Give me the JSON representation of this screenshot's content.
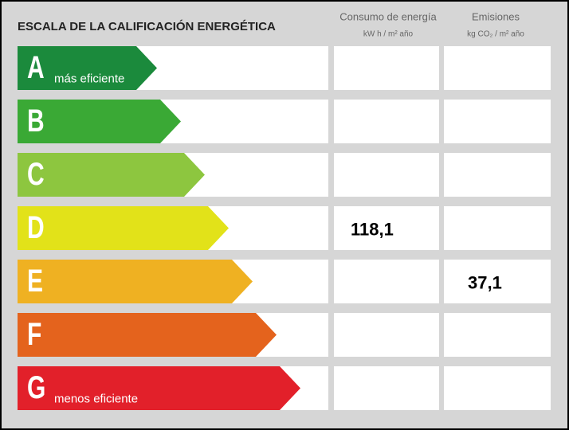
{
  "header": {
    "title": "ESCALA DE LA CALIFICACIÓN ENERGÉTICA"
  },
  "columns": [
    {
      "title": "Consumo de energía",
      "unit": "kW h / m² año"
    },
    {
      "title": "Emisiones",
      "unit": "kg CO₂ / m² año"
    }
  ],
  "rows": [
    {
      "letter": "A",
      "label": "más eficiente",
      "color": "#1b8a3c"
    },
    {
      "letter": "B",
      "color": "#3aa935"
    },
    {
      "letter": "C",
      "color": "#8dc63f"
    },
    {
      "letter": "D",
      "color": "#e2e219",
      "energy": "118,1"
    },
    {
      "letter": "E",
      "color": "#efb122",
      "emissions": "37,1"
    },
    {
      "letter": "F",
      "color": "#e4631d"
    },
    {
      "letter": "G",
      "label": "menos eficiente",
      "color": "#e2202a"
    }
  ]
}
